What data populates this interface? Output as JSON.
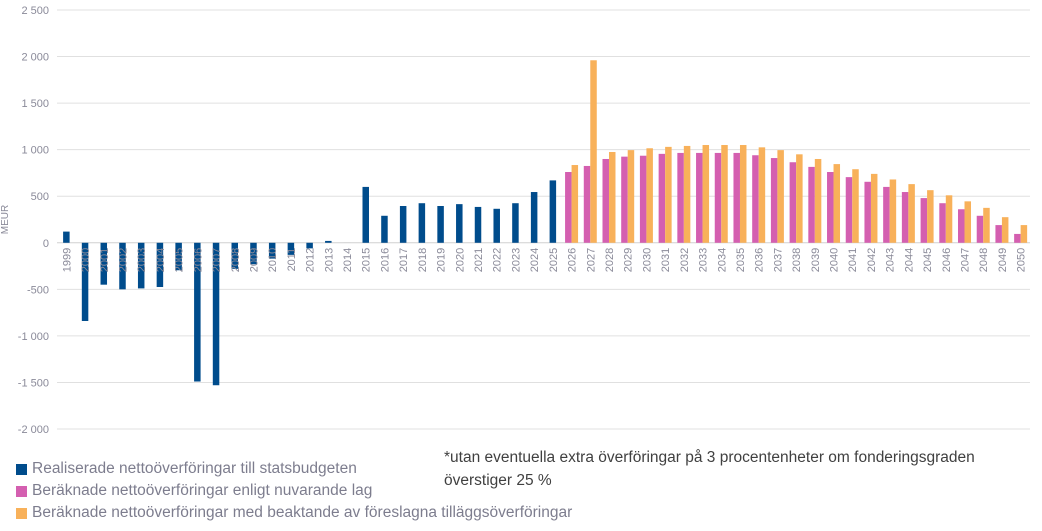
{
  "chart_data": {
    "type": "bar",
    "title": "",
    "xlabel": "",
    "ylabel": "MEUR",
    "ylim": [
      -2000,
      2500
    ],
    "yticks": [
      2500,
      2000,
      1500,
      1000,
      500,
      0,
      -500,
      -1000,
      -1500,
      -2000
    ],
    "ytick_labels": [
      "2 500",
      "2 000",
      "1 500",
      "1 000",
      "500",
      "0",
      "-500",
      "-1 000",
      "-1 500",
      "-2 000"
    ],
    "grid": true,
    "legend_position": "bottom-left",
    "categories": [
      "1999",
      "2000",
      "2001",
      "2002",
      "2003",
      "2004",
      "2005",
      "2006",
      "2007",
      "2008",
      "2009",
      "2010",
      "2011",
      "2012",
      "2013",
      "2014",
      "2015",
      "2016",
      "2017",
      "2018",
      "2019",
      "2020",
      "2021",
      "2022",
      "2023",
      "2024",
      "2025",
      "2026",
      "2027",
      "2028",
      "2029",
      "2030",
      "2031",
      "2032",
      "2033",
      "2034",
      "2035",
      "2036",
      "2037",
      "2038",
      "2039",
      "2040",
      "2041",
      "2042",
      "2043",
      "2044",
      "2045",
      "2046",
      "2047",
      "2048",
      "2049",
      "2050"
    ],
    "series": [
      {
        "name": "Realiserade nettoöverföringar till statsbudgeten",
        "color": "#004C8C",
        "values": [
          120,
          -840,
          -450,
          -500,
          -490,
          -475,
          -295,
          -1490,
          -1530,
          -280,
          -230,
          -170,
          -130,
          -60,
          20,
          0,
          600,
          290,
          395,
          425,
          395,
          415,
          385,
          365,
          425,
          545,
          670,
          null,
          null,
          null,
          null,
          null,
          null,
          null,
          null,
          null,
          null,
          null,
          null,
          null,
          null,
          null,
          null,
          null,
          null,
          null,
          null,
          null,
          null,
          null,
          null,
          null
        ]
      },
      {
        "name": "Beräknade nettoöverföringar enligt nuvarande lag",
        "color": "#D45FB0",
        "values": [
          null,
          null,
          null,
          null,
          null,
          null,
          null,
          null,
          null,
          null,
          null,
          null,
          null,
          null,
          null,
          null,
          null,
          null,
          null,
          null,
          null,
          null,
          null,
          null,
          null,
          null,
          null,
          760,
          825,
          900,
          925,
          935,
          955,
          965,
          965,
          965,
          965,
          940,
          910,
          865,
          815,
          760,
          705,
          655,
          600,
          545,
          480,
          425,
          360,
          290,
          190,
          95
        ]
      },
      {
        "name": "Beräknade nettoöverföringar med beaktande av föreslagna tilläggsöverföringar",
        "color": "#F8B15A",
        "values": [
          null,
          null,
          null,
          null,
          null,
          null,
          null,
          null,
          null,
          null,
          null,
          null,
          null,
          null,
          null,
          null,
          null,
          null,
          null,
          null,
          null,
          null,
          null,
          null,
          null,
          null,
          null,
          835,
          1960,
          975,
          995,
          1015,
          1030,
          1040,
          1050,
          1050,
          1050,
          1025,
          995,
          950,
          900,
          845,
          790,
          740,
          680,
          630,
          565,
          510,
          445,
          375,
          275,
          190
        ]
      }
    ]
  },
  "legend": [
    {
      "label": "Realiserade nettoöverföringar till statsbudgeten",
      "color": "#004C8C"
    },
    {
      "label": "Beräknade nettoöverföringar enligt nuvarande lag",
      "color": "#D45FB0"
    },
    {
      "label": "Beräknade nettoöverföringar med beaktande av föreslagna tilläggsöverföringar",
      "color": "#F8B15A"
    }
  ],
  "note": {
    "line1": "*utan eventuella extra överföringar på 3 procentenheter om fonderingsgraden",
    "line2": "överstiger 25 %"
  }
}
